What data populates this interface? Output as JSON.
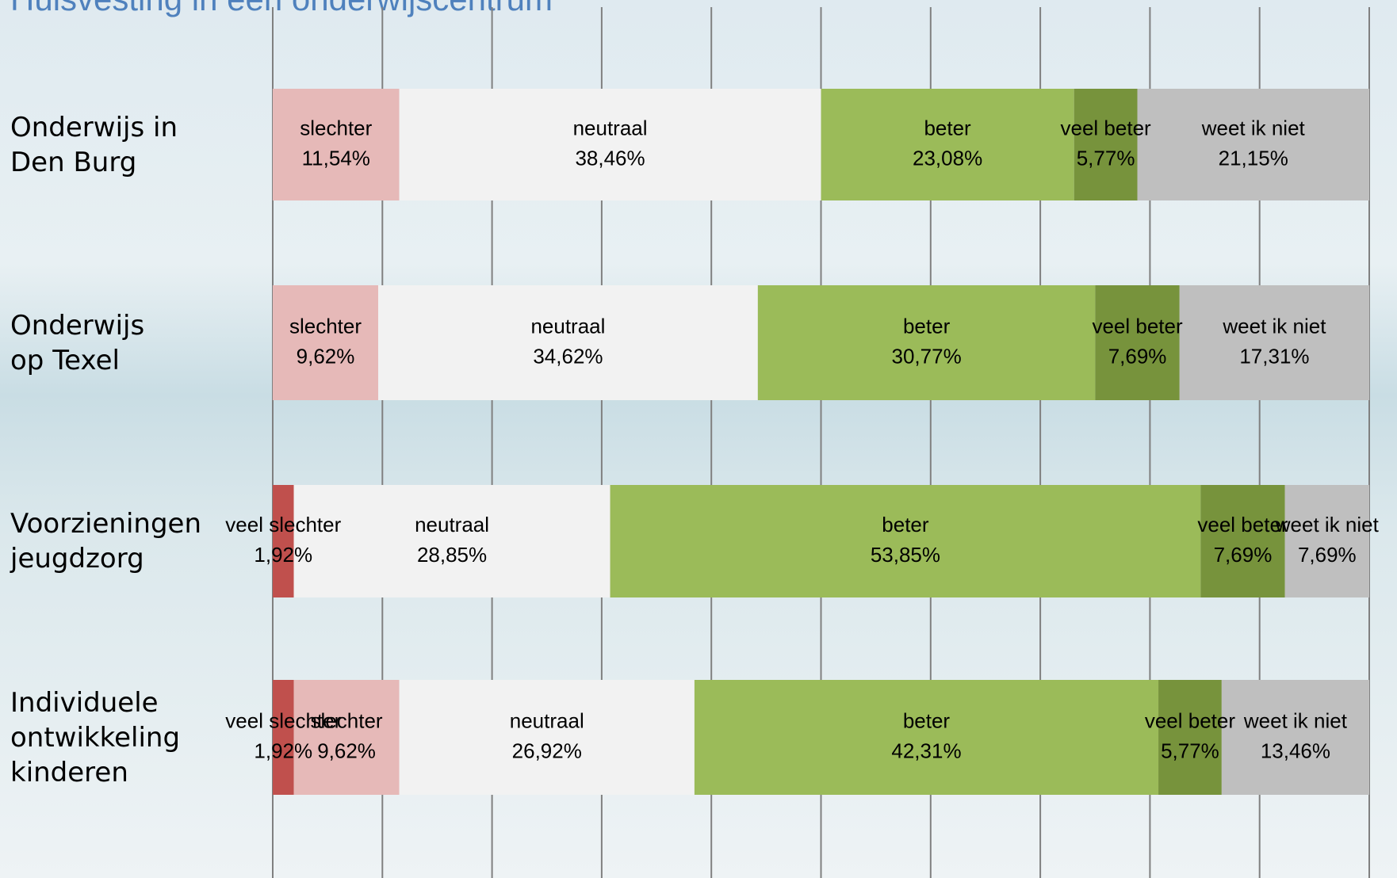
{
  "chart_data": {
    "type": "stacked_barh",
    "title": "Huisvesting in een onderwijscentrum",
    "categories": [
      "Onderwijs in\nDen Burg",
      "Onderwijs\nop Texel",
      "Voorzieningen\njeugdzorg",
      "Individuele\nontwikkeling\nkinderen"
    ],
    "series": [
      {
        "name": "veel slechter",
        "color": "#c0504d",
        "values": [
          null,
          null,
          1.92,
          1.92
        ],
        "value_labels": [
          null,
          null,
          "1,92%",
          "1,92%"
        ]
      },
      {
        "name": "slechter",
        "color": "#e6b9b8",
        "values": [
          11.54,
          9.62,
          null,
          9.62
        ],
        "value_labels": [
          "11,54%",
          "9,62%",
          null,
          "9,62%"
        ]
      },
      {
        "name": "neutraal",
        "color": "#f2f2f2",
        "values": [
          38.46,
          34.62,
          28.85,
          26.92
        ],
        "value_labels": [
          "38,46%",
          "34,62%",
          "28,85%",
          "26,92%"
        ]
      },
      {
        "name": "beter",
        "color": "#9bbb59",
        "values": [
          23.08,
          30.77,
          53.85,
          42.31
        ],
        "value_labels": [
          "23,08%",
          "30,77%",
          "53,85%",
          "42,31%"
        ]
      },
      {
        "name": "veel beter",
        "color": "#77933c",
        "values": [
          5.77,
          7.69,
          7.69,
          5.77
        ],
        "value_labels": [
          "5,77%",
          "7,69%",
          "7,69%",
          "5,77%"
        ]
      },
      {
        "name": "weet ik niet",
        "color": "#bfbfbf",
        "values": [
          21.15,
          17.31,
          7.69,
          13.46
        ],
        "value_labels": [
          "21,15%",
          "17,31%",
          "7,69%",
          "13,46%"
        ]
      }
    ],
    "xlim": [
      0,
      100
    ],
    "xticks": [
      0,
      10,
      20,
      30,
      40,
      50,
      60,
      70,
      80,
      90,
      100
    ],
    "grid": true
  }
}
